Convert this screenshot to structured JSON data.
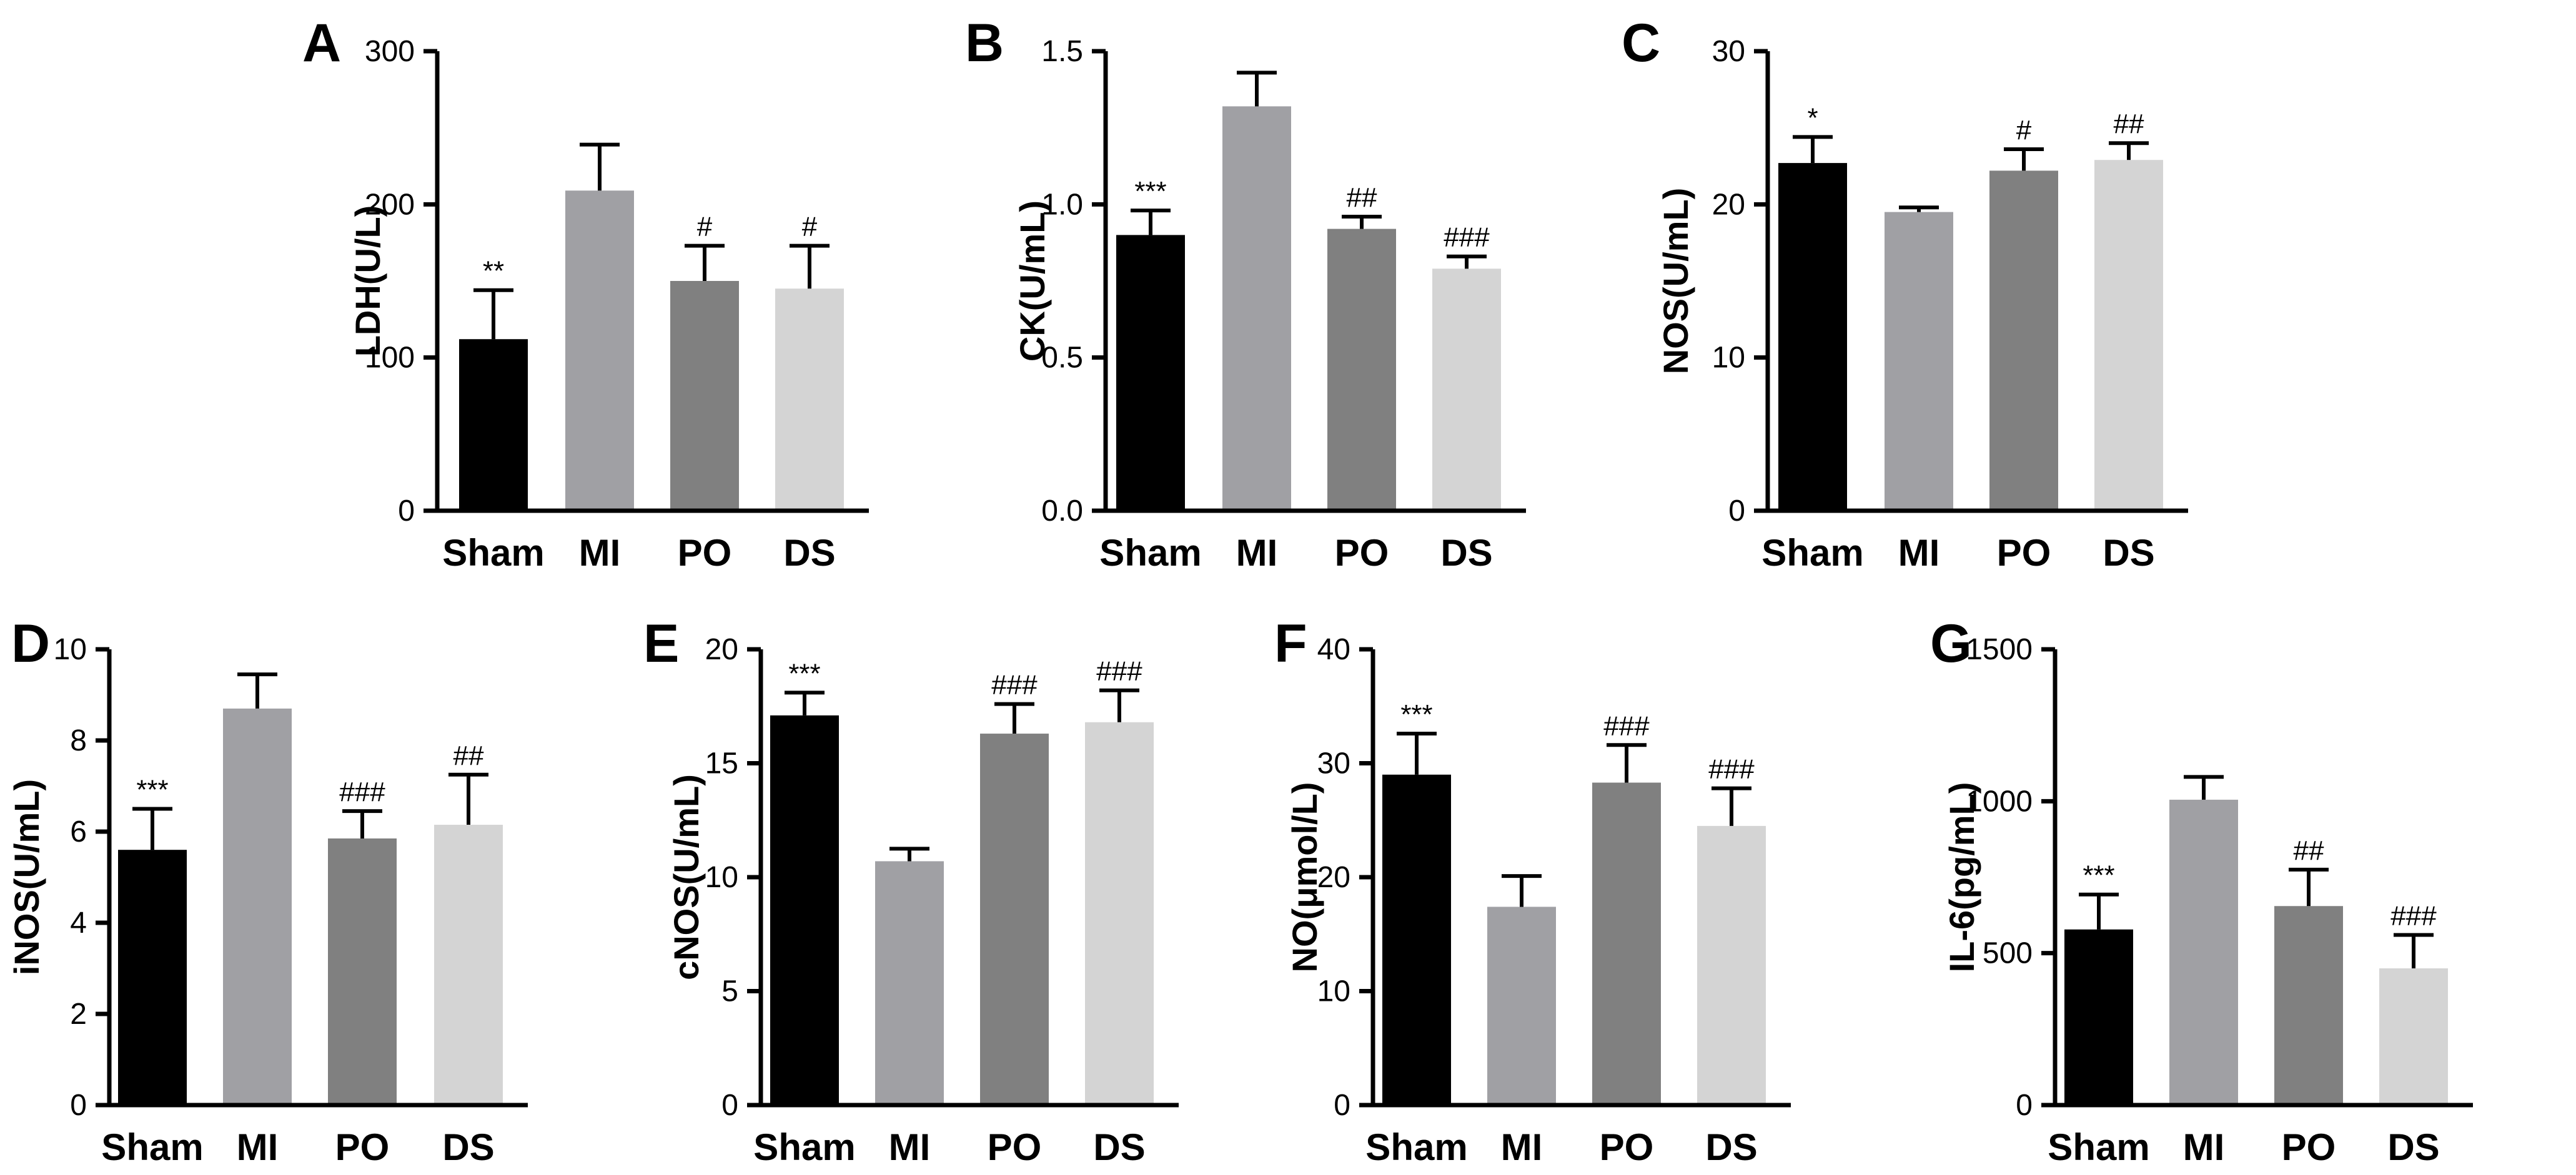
{
  "chart_data": [
    {
      "type": "bar",
      "panel": "A",
      "ylabel": "LDH(U/L)",
      "ylim": [
        0,
        300
      ],
      "yticks": [
        "0",
        "100",
        "200",
        "300"
      ],
      "categories": [
        "Sham",
        "MI",
        "PO",
        "DS"
      ],
      "values": [
        112,
        209,
        150,
        145
      ],
      "errors": [
        32,
        30,
        23,
        28
      ],
      "significance": [
        "**",
        "",
        "#",
        "#"
      ],
      "colors": [
        "#000000",
        "#a0a0a4",
        "#808080",
        "#d4d4d4"
      ]
    },
    {
      "type": "bar",
      "panel": "B",
      "ylabel": "CK(U/mL)",
      "ylim": [
        0,
        1.5
      ],
      "yticks": [
        "0.0",
        "0.5",
        "1.0",
        "1.5"
      ],
      "categories": [
        "Sham",
        "MI",
        "PO",
        "DS"
      ],
      "values": [
        0.9,
        1.32,
        0.92,
        0.79
      ],
      "errors": [
        0.08,
        0.11,
        0.04,
        0.04
      ],
      "significance": [
        "***",
        "",
        "##",
        "###"
      ],
      "colors": [
        "#000000",
        "#a0a0a4",
        "#808080",
        "#d4d4d4"
      ]
    },
    {
      "type": "bar",
      "panel": "C",
      "ylabel": "NOS(U/mL)",
      "ylim": [
        0,
        30
      ],
      "yticks": [
        "0",
        "10",
        "20",
        "30"
      ],
      "categories": [
        "Sham",
        "MI",
        "PO",
        "DS"
      ],
      "values": [
        22.7,
        19.5,
        22.2,
        22.9
      ],
      "errors": [
        1.7,
        0.3,
        1.4,
        1.1
      ],
      "significance": [
        "*",
        "",
        "#",
        "##"
      ],
      "colors": [
        "#000000",
        "#a0a0a4",
        "#808080",
        "#d4d4d4"
      ]
    },
    {
      "type": "bar",
      "panel": "D",
      "ylabel": "iNOS(U/mL)",
      "ylim": [
        0,
        10
      ],
      "yticks": [
        "0",
        "2",
        "4",
        "6",
        "8",
        "10"
      ],
      "categories": [
        "Sham",
        "MI",
        "PO",
        "DS"
      ],
      "values": [
        5.6,
        8.7,
        5.85,
        6.15
      ],
      "errors": [
        0.9,
        0.75,
        0.6,
        1.1
      ],
      "significance": [
        "***",
        "",
        "###",
        "##"
      ],
      "colors": [
        "#000000",
        "#a0a0a4",
        "#808080",
        "#d4d4d4"
      ]
    },
    {
      "type": "bar",
      "panel": "E",
      "ylabel": "cNOS(U/mL)",
      "ylim": [
        0,
        20
      ],
      "yticks": [
        "0",
        "5",
        "10",
        "15",
        "20"
      ],
      "categories": [
        "Sham",
        "MI",
        "PO",
        "DS"
      ],
      "values": [
        17.1,
        10.7,
        16.3,
        16.8
      ],
      "errors": [
        1.0,
        0.55,
        1.3,
        1.4
      ],
      "significance": [
        "***",
        "",
        "###",
        "###"
      ],
      "colors": [
        "#000000",
        "#a0a0a4",
        "#808080",
        "#d4d4d4"
      ]
    },
    {
      "type": "bar",
      "panel": "F",
      "ylabel": "NO(μmol/L)",
      "ylim": [
        0,
        40
      ],
      "yticks": [
        "0",
        "10",
        "20",
        "30",
        "40"
      ],
      "categories": [
        "Sham",
        "MI",
        "PO",
        "DS"
      ],
      "values": [
        29,
        17.4,
        28.3,
        24.5
      ],
      "errors": [
        3.6,
        2.7,
        3.3,
        3.3
      ],
      "significance": [
        "***",
        "",
        "###",
        "###"
      ],
      "colors": [
        "#000000",
        "#a0a0a4",
        "#808080",
        "#d4d4d4"
      ]
    },
    {
      "type": "bar",
      "panel": "G",
      "ylabel": "IL-6(pg/mL)",
      "ylim": [
        0,
        1500
      ],
      "yticks": [
        "0",
        "500",
        "1000",
        "1500"
      ],
      "categories": [
        "Sham",
        "MI",
        "PO",
        "DS"
      ],
      "values": [
        578,
        1005,
        655,
        450
      ],
      "errors": [
        115,
        75,
        120,
        110
      ],
      "significance": [
        "***",
        "",
        "##",
        "###"
      ],
      "colors": [
        "#000000",
        "#a0a0a4",
        "#808080",
        "#d4d4d4"
      ]
    }
  ]
}
